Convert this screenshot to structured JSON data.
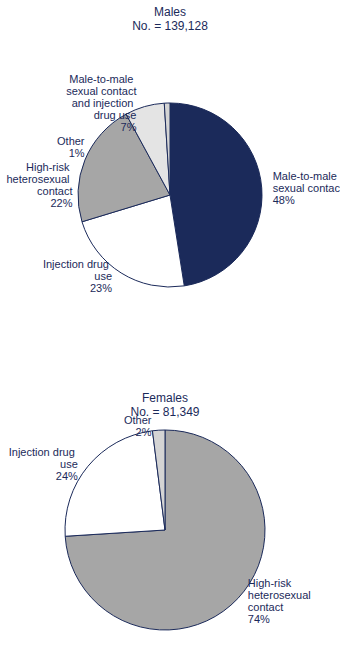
{
  "chart_data": [
    {
      "type": "pie",
      "title": "Males",
      "subtitle": "No. = 139,128",
      "categories": [
        "Male-to-male sexual contact",
        "Injection drug use",
        "High-risk heterosexual contact",
        "Male-to-male sexual contact and injection drug use",
        "Other"
      ],
      "values": [
        48,
        23,
        22,
        7,
        1
      ],
      "value_labels": [
        "48%",
        "23%",
        "22%",
        "7%",
        "1%"
      ],
      "colors": [
        "#1b2a5a",
        "#ffffff",
        "#a6a6a6",
        "#e4e4e4",
        "#d4d4d4"
      ],
      "data_labels": true
    },
    {
      "type": "pie",
      "title": "Females",
      "subtitle": "No. = 81,349",
      "categories": [
        "High-risk heterosexual contact",
        "Injection drug use",
        "Other"
      ],
      "values": [
        74,
        24,
        2
      ],
      "value_labels": [
        "74%",
        "24%",
        "2%"
      ],
      "colors": [
        "#a6a6a6",
        "#ffffff",
        "#d4d4d4"
      ],
      "data_labels": true
    }
  ]
}
